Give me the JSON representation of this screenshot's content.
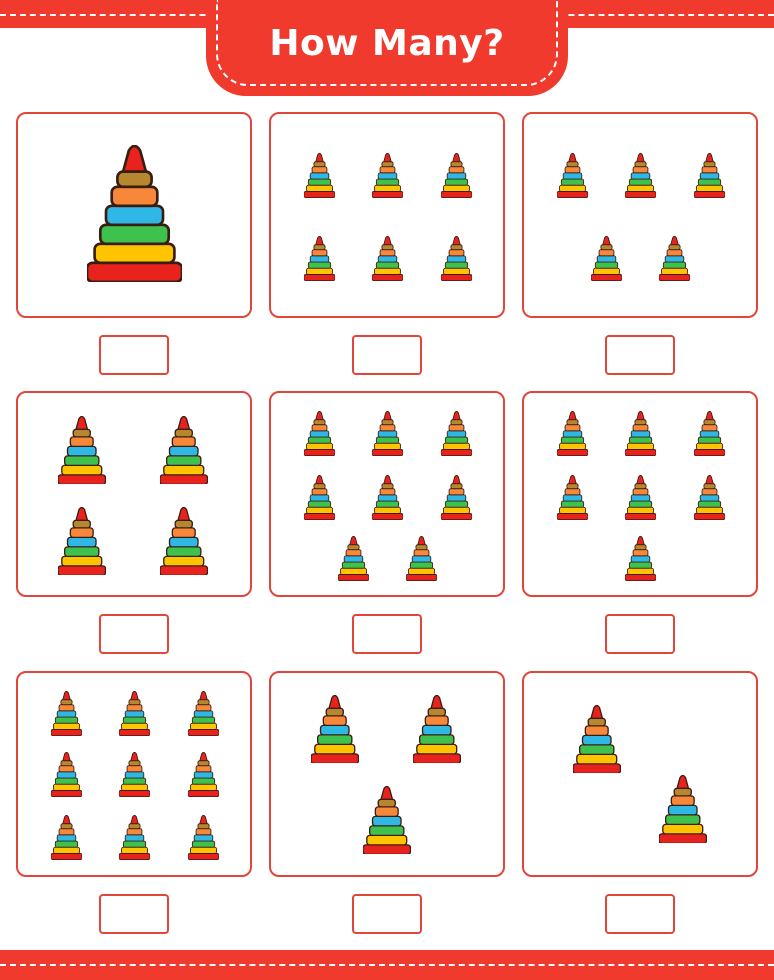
{
  "worksheet": {
    "title": "How Many?",
    "colors": {
      "accent": "#f03a2e",
      "border": "#e2453a",
      "rings": [
        "#e8231d",
        "#ffc400",
        "#3ec24d",
        "#2fb8e6",
        "#f7883a",
        "#b7872f",
        "#e8231d"
      ]
    },
    "item_icon": "pyramid-ring-toy-icon",
    "panels": [
      {
        "count": 1
      },
      {
        "count": 6
      },
      {
        "count": 5
      },
      {
        "count": 4
      },
      {
        "count": 8
      },
      {
        "count": 7
      },
      {
        "count": 9
      },
      {
        "count": 3
      },
      {
        "count": 2
      }
    ]
  }
}
